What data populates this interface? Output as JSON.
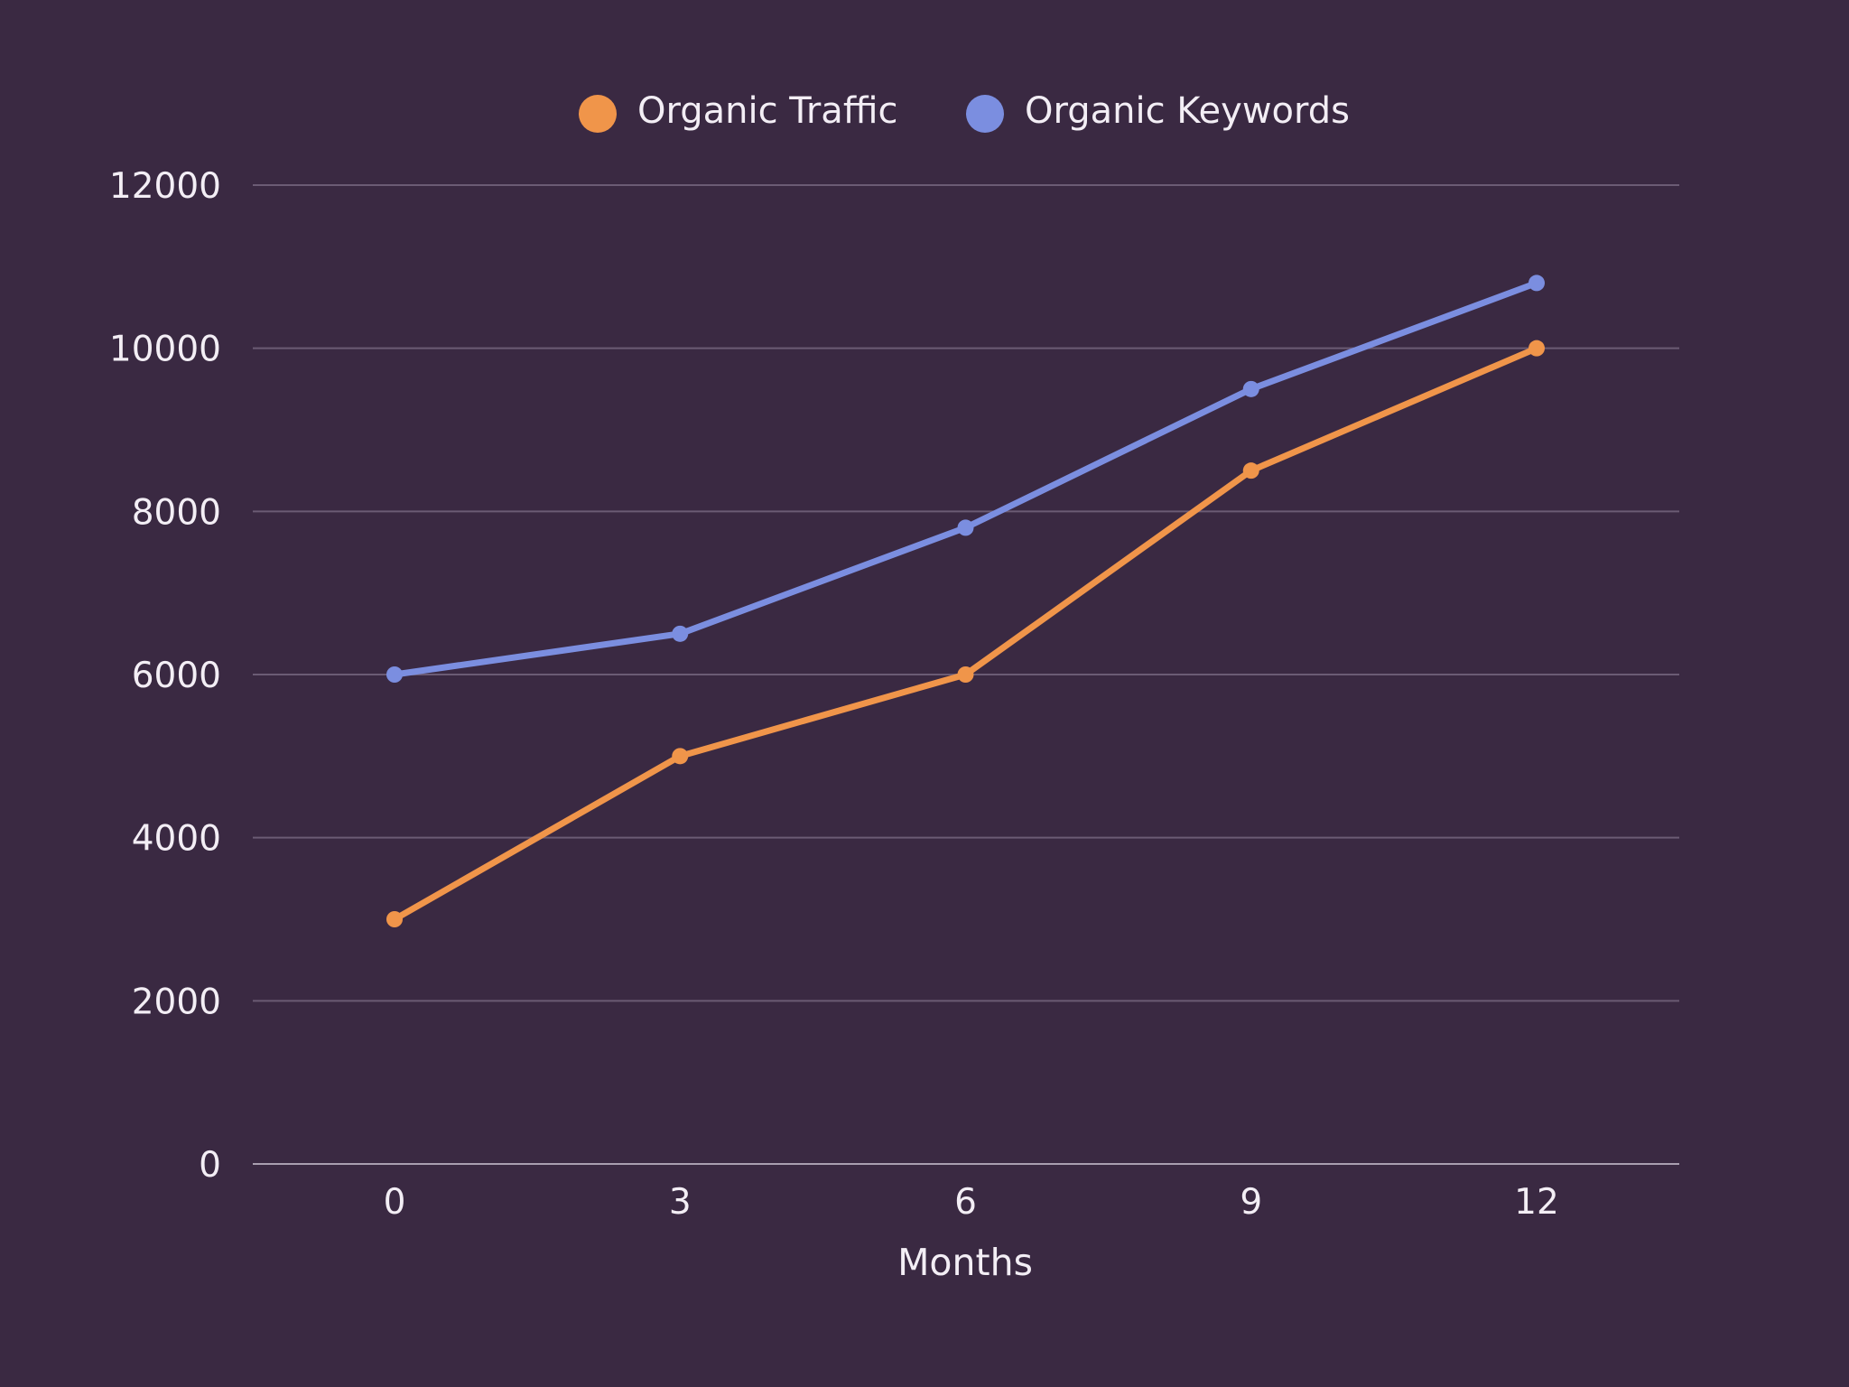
{
  "chart_data": {
    "type": "line",
    "title": "",
    "xlabel": "Months",
    "ylabel": "",
    "x": [
      0,
      3,
      6,
      9,
      12
    ],
    "x_tick_labels": [
      "0",
      "3",
      "6",
      "9",
      "12"
    ],
    "ylim": [
      0,
      12000
    ],
    "y_ticks": [
      0,
      2000,
      4000,
      6000,
      8000,
      10000,
      12000
    ],
    "y_tick_labels": [
      "0",
      "2000",
      "4000",
      "6000",
      "8000",
      "10000",
      "12000"
    ],
    "grid": true,
    "legend_position": "top-center",
    "series": [
      {
        "name": "Organic Traffic",
        "color": "#f0954a",
        "values": [
          3000,
          5000,
          6000,
          8500,
          10000
        ]
      },
      {
        "name": "Organic Keywords",
        "color": "#7b8ee0",
        "values": [
          6000,
          6500,
          7800,
          9500,
          10800
        ]
      }
    ]
  },
  "colors": {
    "background": "#3a2942",
    "text": "#f3eef5",
    "grid": "#6b5b74"
  }
}
